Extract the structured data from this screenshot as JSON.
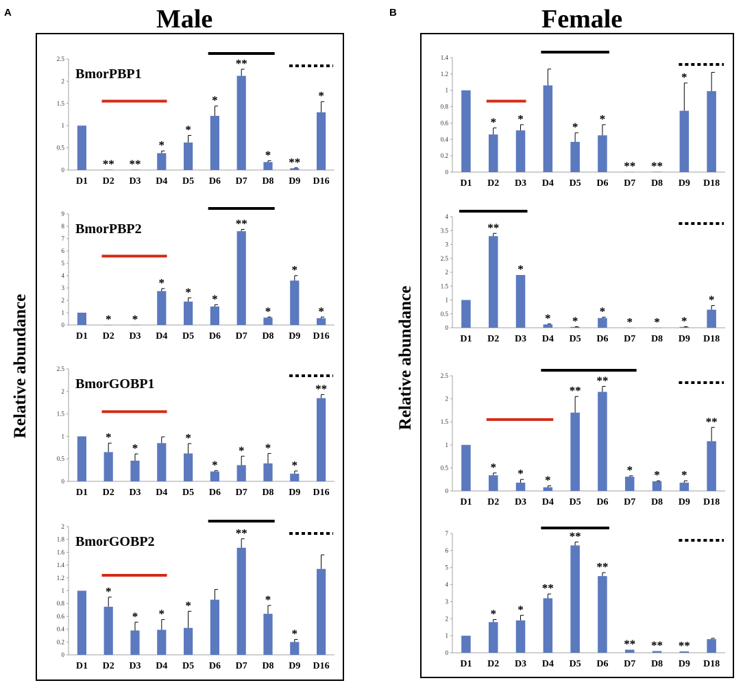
{
  "panel_labels": {
    "left": "A",
    "right": "B"
  },
  "titles": {
    "left": "Male",
    "right": "Female"
  },
  "y_axis_label": "Relative abundance",
  "colors": {
    "bar": "#5b79bf",
    "red_line": "#d42a14",
    "black_line": "#000000",
    "axis": "#a0a0a0"
  },
  "chart_data": [
    {
      "id": "male-pbp1",
      "type": "bar",
      "title": "BmorPBP1",
      "categories": [
        "D1",
        "D2",
        "D3",
        "D4",
        "D5",
        "D6",
        "D7",
        "D8",
        "D9",
        "D16"
      ],
      "values": [
        1,
        0.01,
        0.01,
        0.38,
        0.62,
        1.22,
        2.12,
        0.18,
        0.04,
        1.3
      ],
      "errors": [
        0,
        0,
        0,
        0.05,
        0.16,
        0.22,
        0.15,
        0.03,
        0.01,
        0.24
      ],
      "significance": [
        "",
        "**",
        "**",
        "*",
        "*",
        "*",
        "**",
        "*",
        "**",
        "*"
      ],
      "ylim": [
        0,
        2.5
      ],
      "yticks": [
        "0",
        "0.5",
        "1",
        "1.5",
        "2",
        "2.5"
      ],
      "red_line": [
        1,
        3
      ],
      "black_line": [
        5,
        7
      ],
      "dotted_line": [
        8,
        9
      ]
    },
    {
      "id": "male-pbp2",
      "type": "bar",
      "title": "BmorPBP2",
      "categories": [
        "D1",
        "D2",
        "D3",
        "D4",
        "D5",
        "D6",
        "D7",
        "D8",
        "D9",
        "D16"
      ],
      "values": [
        1,
        0.01,
        0.01,
        2.75,
        1.9,
        1.5,
        7.6,
        0.6,
        3.6,
        0.55
      ],
      "errors": [
        0,
        0,
        0,
        0.2,
        0.3,
        0.15,
        0.15,
        0.05,
        0.4,
        0.1
      ],
      "significance": [
        "",
        "*",
        "*",
        "*",
        "*",
        "*",
        "**",
        "*",
        "*",
        "*"
      ],
      "ylim": [
        0,
        9
      ],
      "yticks": [
        "0",
        "1",
        "2",
        "3",
        "4",
        "5",
        "6",
        "7",
        "8",
        "9"
      ],
      "red_line": [
        1,
        3
      ],
      "black_line": [
        5,
        7
      ],
      "dotted_line": null
    },
    {
      "id": "male-gobp1",
      "type": "bar",
      "title": "BmorGOBP1",
      "categories": [
        "D1",
        "D2",
        "D3",
        "D4",
        "D5",
        "D6",
        "D7",
        "D8",
        "D9",
        "D16"
      ],
      "values": [
        1,
        0.65,
        0.46,
        0.85,
        0.62,
        0.22,
        0.36,
        0.4,
        0.17,
        1.85
      ],
      "errors": [
        0,
        0.2,
        0.15,
        0.14,
        0.22,
        0.02,
        0.2,
        0.22,
        0.06,
        0.08
      ],
      "significance": [
        "",
        "*",
        "*",
        "",
        "*",
        "*",
        "*",
        "*",
        "*",
        "**"
      ],
      "ylim": [
        0,
        2.5
      ],
      "yticks": [
        "0",
        "0.5",
        "1",
        "1.5",
        "2",
        "2.5"
      ],
      "red_line": [
        1,
        3
      ],
      "black_line": null,
      "dotted_line": [
        8,
        9
      ]
    },
    {
      "id": "male-gobp2",
      "type": "bar",
      "title": "BmorGOBP2",
      "categories": [
        "D1",
        "D2",
        "D3",
        "D4",
        "D5",
        "D6",
        "D7",
        "D8",
        "D9",
        "D16"
      ],
      "values": [
        1,
        0.75,
        0.38,
        0.39,
        0.42,
        0.86,
        1.67,
        0.64,
        0.2,
        1.34
      ],
      "errors": [
        0,
        0.15,
        0.13,
        0.16,
        0.26,
        0.16,
        0.14,
        0.13,
        0.04,
        0.22
      ],
      "significance": [
        "",
        "*",
        "*",
        "*",
        "*",
        "",
        "**",
        "*",
        "*",
        ""
      ],
      "ylim": [
        0,
        2
      ],
      "yticks": [
        "0",
        "0.2",
        "0.4",
        "0.6",
        "0.8",
        "1",
        "1.2",
        "1.4",
        "1.6",
        "1.8",
        "2"
      ],
      "red_line": [
        1,
        3
      ],
      "black_line": [
        5,
        7
      ],
      "dotted_line": [
        8,
        9
      ]
    },
    {
      "id": "female-1",
      "type": "bar",
      "title": "",
      "categories": [
        "D1",
        "D2",
        "D3",
        "D4",
        "D5",
        "D6",
        "D7",
        "D8",
        "D9",
        "D18"
      ],
      "values": [
        1,
        0.46,
        0.51,
        1.06,
        0.37,
        0.45,
        0.003,
        0.005,
        0.75,
        0.99
      ],
      "errors": [
        0,
        0.08,
        0.07,
        0.2,
        0.11,
        0.13,
        0,
        0,
        0.34,
        0.23
      ],
      "significance": [
        "",
        "*",
        "*",
        "",
        "*",
        "*",
        "**",
        "**",
        "*",
        ""
      ],
      "ylim": [
        0,
        1.4
      ],
      "yticks": [
        "0",
        "0.2",
        "0.4",
        "0.6",
        "0.8",
        "1",
        "1.2",
        "1.4"
      ],
      "red_line": [
        1,
        2
      ],
      "black_line": [
        3,
        5
      ],
      "dotted_line": [
        8,
        9
      ]
    },
    {
      "id": "female-2",
      "type": "bar",
      "title": "",
      "categories": [
        "D1",
        "D2",
        "D3",
        "D4",
        "D5",
        "D6",
        "D7",
        "D8",
        "D9",
        "D18"
      ],
      "values": [
        1,
        3.3,
        1.9,
        0.12,
        0.03,
        0.35,
        0.003,
        0.003,
        0.03,
        0.65
      ],
      "errors": [
        0,
        0.1,
        0,
        0.02,
        0.01,
        0.03,
        0,
        0,
        0.01,
        0.15
      ],
      "significance": [
        "",
        "**",
        "*",
        "*",
        "*",
        "*",
        "*",
        "*",
        "*",
        "*"
      ],
      "ylim": [
        0,
        4
      ],
      "yticks": [
        "0",
        "0.5",
        "1",
        "1.5",
        "2",
        "2.5",
        "3",
        "3.5",
        "4"
      ],
      "red_line": null,
      "black_line": [
        0,
        2
      ],
      "dotted_line": [
        8,
        9
      ]
    },
    {
      "id": "female-3",
      "type": "bar",
      "title": "",
      "categories": [
        "D1",
        "D2",
        "D3",
        "D4",
        "D5",
        "D6",
        "D7",
        "D8",
        "D9",
        "D18"
      ],
      "values": [
        1,
        0.34,
        0.18,
        0.08,
        1.7,
        2.15,
        0.31,
        0.21,
        0.18,
        1.08
      ],
      "errors": [
        0,
        0.05,
        0.07,
        0.03,
        0.35,
        0.12,
        0.02,
        0.01,
        0.04,
        0.3
      ],
      "significance": [
        "",
        "*",
        "*",
        "*",
        "**",
        "**",
        "*",
        "*",
        "*",
        "**"
      ],
      "ylim": [
        0,
        2.5
      ],
      "yticks": [
        "0",
        "0.5",
        "1",
        "1.5",
        "2",
        "2.5"
      ],
      "red_line": [
        1,
        3
      ],
      "black_line": [
        3,
        6
      ],
      "dotted_line": [
        8,
        9
      ]
    },
    {
      "id": "female-4",
      "type": "bar",
      "title": "",
      "categories": [
        "D1",
        "D2",
        "D3",
        "D4",
        "D5",
        "D6",
        "D7",
        "D8",
        "D9",
        "D18"
      ],
      "values": [
        1,
        1.8,
        1.9,
        3.2,
        6.3,
        4.5,
        0.18,
        0.1,
        0.08,
        0.8
      ],
      "errors": [
        0,
        0.15,
        0.3,
        0.25,
        0.2,
        0.2,
        0,
        0,
        0,
        0.05
      ],
      "significance": [
        "",
        "*",
        "*",
        "**",
        "**",
        "**",
        "**",
        "**",
        "**",
        ""
      ],
      "ylim": [
        0,
        7
      ],
      "yticks": [
        "0",
        "1",
        "2",
        "3",
        "4",
        "5",
        "6",
        "7"
      ],
      "red_line": null,
      "black_line": [
        3,
        5
      ],
      "dotted_line": [
        8,
        9
      ]
    }
  ]
}
